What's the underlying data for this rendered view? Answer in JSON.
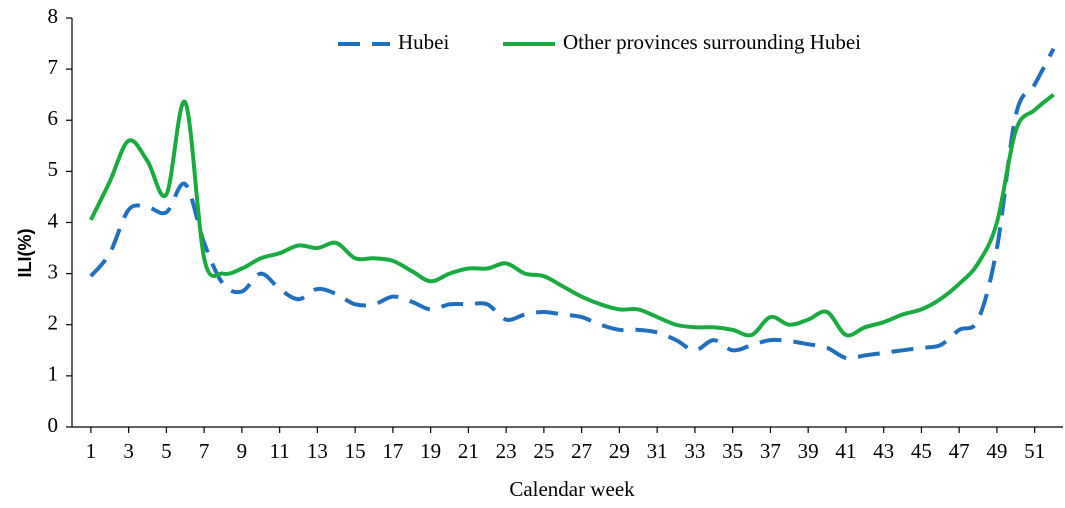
{
  "chart_data": {
    "type": "line",
    "x_label": "Calendar week",
    "y_label": "ILI(%)",
    "x": [
      1,
      2,
      3,
      4,
      5,
      6,
      7,
      8,
      9,
      10,
      11,
      12,
      13,
      14,
      15,
      16,
      17,
      18,
      19,
      20,
      21,
      22,
      23,
      24,
      25,
      26,
      27,
      28,
      29,
      30,
      31,
      32,
      33,
      34,
      35,
      36,
      37,
      38,
      39,
      40,
      41,
      42,
      43,
      44,
      45,
      46,
      47,
      48,
      49,
      50,
      51,
      52
    ],
    "xlim": [
      0,
      52.5
    ],
    "xticks": [
      1,
      3,
      5,
      7,
      9,
      11,
      13,
      15,
      17,
      19,
      21,
      23,
      25,
      27,
      29,
      31,
      33,
      35,
      37,
      39,
      41,
      43,
      45,
      47,
      49,
      51
    ],
    "ylim": [
      0,
      8
    ],
    "yticks": [
      0,
      1,
      2,
      3,
      4,
      5,
      6,
      7,
      8
    ],
    "legend": "top",
    "series": [
      {
        "name": "Hubei",
        "color": "#1f6fbf",
        "dashed": true,
        "values": [
          2.95,
          3.4,
          4.25,
          4.3,
          4.2,
          4.75,
          3.6,
          2.8,
          2.65,
          3.0,
          2.7,
          2.5,
          2.7,
          2.6,
          2.4,
          2.4,
          2.55,
          2.45,
          2.3,
          2.4,
          2.4,
          2.4,
          2.1,
          2.2,
          2.25,
          2.2,
          2.15,
          2.0,
          1.9,
          1.9,
          1.85,
          1.7,
          1.5,
          1.7,
          1.5,
          1.6,
          1.7,
          1.68,
          1.62,
          1.55,
          1.35,
          1.4,
          1.45,
          1.5,
          1.55,
          1.6,
          1.9,
          2.1,
          3.5,
          6.1,
          6.7,
          7.4
        ]
      },
      {
        "name": "Other provinces surrounding Hubei",
        "color": "#1aab40",
        "dashed": false,
        "values": [
          4.05,
          4.8,
          5.6,
          5.2,
          4.55,
          6.35,
          3.3,
          3.0,
          3.1,
          3.3,
          3.4,
          3.55,
          3.5,
          3.6,
          3.3,
          3.3,
          3.25,
          3.05,
          2.85,
          3.0,
          3.1,
          3.1,
          3.2,
          3.0,
          2.95,
          2.75,
          2.55,
          2.4,
          2.3,
          2.3,
          2.15,
          2.0,
          1.95,
          1.95,
          1.9,
          1.8,
          2.15,
          2.0,
          2.1,
          2.25,
          1.8,
          1.95,
          2.05,
          2.2,
          2.3,
          2.5,
          2.8,
          3.2,
          4.0,
          5.8,
          6.2,
          6.5
        ]
      }
    ]
  }
}
